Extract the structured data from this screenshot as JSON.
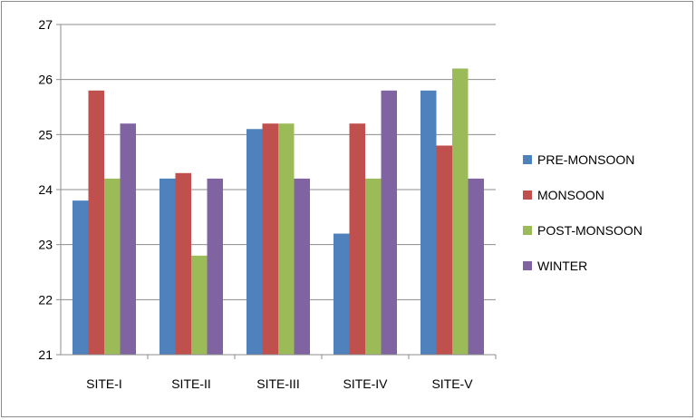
{
  "chart_data": {
    "type": "bar",
    "title": "",
    "xlabel": "",
    "ylabel": "",
    "categories": [
      "SITE-I",
      "SITE-II",
      "SITE-III",
      "SITE-IV",
      "SITE-V"
    ],
    "series": [
      {
        "name": "PRE-MONSOON",
        "color": "#4F81BD",
        "values": [
          23.8,
          24.2,
          25.1,
          23.2,
          25.8
        ]
      },
      {
        "name": "MONSOON",
        "color": "#C0504D",
        "values": [
          25.8,
          24.3,
          25.2,
          25.2,
          24.8
        ]
      },
      {
        "name": "POST-MONSOON",
        "color": "#9BBB59",
        "values": [
          24.2,
          22.8,
          25.2,
          24.2,
          26.2
        ]
      },
      {
        "name": "WINTER",
        "color": "#8064A2",
        "values": [
          25.2,
          24.2,
          24.2,
          25.8,
          24.2
        ]
      }
    ],
    "ylim": [
      21,
      27
    ],
    "yticks": [
      "21",
      "22",
      "23",
      "24",
      "25",
      "26",
      "27"
    ],
    "grid": true,
    "legend_position": "right"
  }
}
